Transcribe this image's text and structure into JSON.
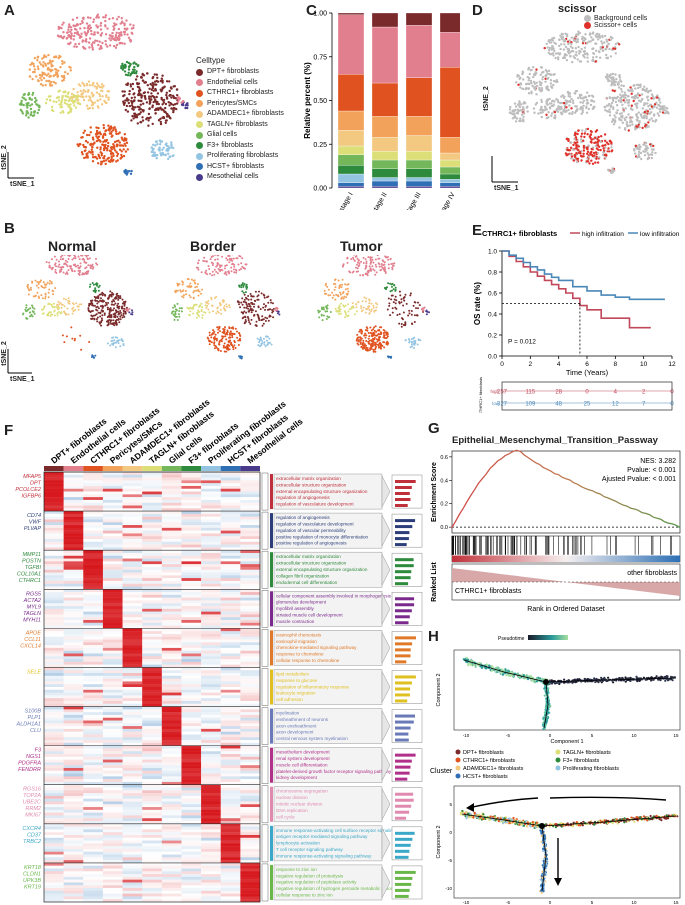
{
  "panels": {
    "A": "A",
    "B": "B",
    "C": "C",
    "D": "D",
    "E": "E",
    "F": "F",
    "G": "G",
    "H": "H"
  },
  "tsne": {
    "x": "tSNE_1",
    "y": "tSNE_2"
  },
  "celltypes": {
    "title": "Celltype",
    "items": [
      {
        "name": "DPT+ fibroblasts",
        "color": "#7a2a2a"
      },
      {
        "name": "Endothelial cells",
        "color": "#e27f8f"
      },
      {
        "name": "CTHRC1+ fibroblasts",
        "color": "#e0521f"
      },
      {
        "name": "Pericytes/SMCs",
        "color": "#f2a25a"
      },
      {
        "name": "ADAMDEC1+ fibroblasts",
        "color": "#f3c982"
      },
      {
        "name": "TAGLN+ fibroblasts",
        "color": "#dcdf78"
      },
      {
        "name": "Glial cells",
        "color": "#74b75a"
      },
      {
        "name": "F3+ fibroblasts",
        "color": "#2e8a3c"
      },
      {
        "name": "Proliferating fibroblasts",
        "color": "#93c4e2"
      },
      {
        "name": "HCST+ fibroblasts",
        "color": "#2f6fb5"
      },
      {
        "name": "Mesothelial cells",
        "color": "#4a3a8c"
      }
    ]
  },
  "panelB": {
    "titles": [
      "Normal",
      "Border",
      "Tumor"
    ]
  },
  "chart_data": [
    {
      "type": "bar",
      "title": "",
      "ylabel": "Relative percent (%)",
      "xlabel": "",
      "ylim": [
        0,
        1
      ],
      "yticks": [
        "0.00",
        "0.25",
        "0.50",
        "0.75",
        "1.00"
      ],
      "categories": [
        "stage I",
        "stage II",
        "stage III",
        "stage IV"
      ],
      "series": [
        {
          "name": "Mesothelial cells",
          "color": "#4a3a8c",
          "values": [
            0.01,
            0.01,
            0.01,
            0.01
          ]
        },
        {
          "name": "HCST+ fibroblasts",
          "color": "#2f6fb5",
          "values": [
            0.02,
            0.03,
            0.03,
            0.02
          ]
        },
        {
          "name": "Proliferating fibroblasts",
          "color": "#93c4e2",
          "values": [
            0.05,
            0.02,
            0.02,
            0.02
          ]
        },
        {
          "name": "F3+ fibroblasts",
          "color": "#2e8a3c",
          "values": [
            0.05,
            0.05,
            0.05,
            0.03
          ]
        },
        {
          "name": "Glial cells",
          "color": "#74b75a",
          "values": [
            0.06,
            0.05,
            0.05,
            0.04
          ]
        },
        {
          "name": "TAGLN+ fibroblasts",
          "color": "#dcdf78",
          "values": [
            0.05,
            0.05,
            0.05,
            0.04
          ]
        },
        {
          "name": "ADAMDEC1+ fibroblasts",
          "color": "#f3c982",
          "values": [
            0.09,
            0.08,
            0.09,
            0.04
          ]
        },
        {
          "name": "Pericytes/SMCs",
          "color": "#f2a25a",
          "values": [
            0.11,
            0.12,
            0.11,
            0.09
          ]
        },
        {
          "name": "CTHRC1+ fibroblasts",
          "color": "#e0521f",
          "values": [
            0.21,
            0.19,
            0.22,
            0.4
          ]
        },
        {
          "name": "Endothelial cells",
          "color": "#e27f8f",
          "values": [
            0.34,
            0.32,
            0.3,
            0.2
          ]
        },
        {
          "name": "DPT+ fibroblasts",
          "color": "#7a2a2a",
          "values": [
            0.01,
            0.08,
            0.07,
            0.11
          ]
        }
      ]
    },
    {
      "type": "line",
      "title": "CTHRC1+ fibroblasts",
      "xlabel": "Time (Years)",
      "ylabel": "OS rate (%)",
      "xlim": [
        0,
        12
      ],
      "ylim": [
        0,
        1
      ],
      "xticks": [
        "0",
        "2",
        "4",
        "6",
        "8",
        "10",
        "12"
      ],
      "yticks": [
        "0.0",
        "0.2",
        "0.4",
        "0.6",
        "0.8",
        "1.0"
      ],
      "series": [
        {
          "name": "high infiltration",
          "color": "#c0485a",
          "x": [
            0,
            0.5,
            1,
            1.5,
            2,
            2.5,
            3,
            3.5,
            4,
            4.5,
            5,
            5.5,
            6,
            7,
            8,
            9,
            10.5
          ],
          "y": [
            1.0,
            0.95,
            0.9,
            0.85,
            0.8,
            0.76,
            0.72,
            0.68,
            0.64,
            0.6,
            0.55,
            0.48,
            0.44,
            0.36,
            0.36,
            0.27,
            0.27
          ]
        },
        {
          "name": "low infiltration",
          "color": "#4a88b8",
          "x": [
            0,
            0.5,
            1,
            1.5,
            2,
            2.5,
            3,
            3.5,
            4,
            5,
            6,
            7,
            8,
            9,
            10,
            11.5
          ],
          "y": [
            1.0,
            0.96,
            0.93,
            0.89,
            0.85,
            0.82,
            0.78,
            0.75,
            0.72,
            0.66,
            0.62,
            0.58,
            0.56,
            0.54,
            0.54,
            0.54
          ]
        }
      ],
      "pvalue": "P = 0.012",
      "median_marker_x": 5.5
    }
  ],
  "panelD": {
    "title": "scissor",
    "legend": [
      {
        "name": "Background cells",
        "color": "#bdbdbd"
      },
      {
        "name": "Scissor+ cells",
        "color": "#e0302a"
      }
    ]
  },
  "risk_table": {
    "label": "CTHRC1+ fibroblasts",
    "rows": [
      {
        "name": "high",
        "color": "#c0485a",
        "counts": [
          "257",
          "115",
          "28",
          "0",
          "4",
          "2",
          "0"
        ]
      },
      {
        "name": "low",
        "color": "#4a88b8",
        "counts": [
          "327",
          "109",
          "48",
          "25",
          "12",
          "7",
          "0"
        ]
      }
    ],
    "xlabel": "Time (Years)"
  },
  "panelF": {
    "columns": [
      "DPT+ fibroblasts",
      "Endothelial cells",
      "CTHRC1+ fibroblasts",
      "Pericytes/SMCs",
      "ADAMDEC1+ fibroblasts",
      "TAGLN+ fibroblasts",
      "Glial cells",
      "F3+ fibroblasts",
      "Proliferating fibroblasts",
      "HCST+ fibroblasts",
      "Mesothelial cells"
    ],
    "groups": [
      {
        "genes": [
          "MFAP5",
          "DPT",
          "PCOLCE2",
          "IGFBP6"
        ],
        "color": "#c0303a",
        "terms": [
          "extracellular matrix organization",
          "extracellular structure organization",
          "external encapsulating structure organization",
          "regulation of angiogenesis",
          "regulation of vasculature development"
        ]
      },
      {
        "genes": [
          "CD74",
          "VWF",
          "PLVAP"
        ],
        "color": "#2c3e7a",
        "terms": [
          "regulation of angiogenesis",
          "regulation of vasculature development",
          "regulation of vascular permeability",
          "positive regulation of monocyte differentiation",
          "positive regulation of angiogenesis"
        ]
      },
      {
        "genes": [
          "MMP11",
          "POSTN",
          "TGFBI",
          "COL10A1",
          "CTHRC1"
        ],
        "color": "#2e8a3c",
        "terms": [
          "extracellular matrix organization",
          "extracellular structure organization",
          "external encapsulating structure organization",
          "collagen fibril organization",
          "endodermal cell differentiation"
        ]
      },
      {
        "genes": [
          "RGS5",
          "ACTA2",
          "MYL9",
          "TAGLN",
          "MYH11"
        ],
        "color": "#7a2a8c",
        "terms": [
          "cellular component assembly involved in morphogenesis",
          "glomerulus development",
          "myofibril assembly",
          "striated muscle cell development",
          "muscle contraction"
        ]
      },
      {
        "genes": [
          "APOE",
          "CCL11",
          "CXCL14"
        ],
        "color": "#e07a2a",
        "terms": [
          "eosinophil chemotaxis",
          "eosinophil migration",
          "chemokine-mediated signaling pathway",
          "response to chemokine",
          "cellular response to chemokine"
        ]
      },
      {
        "genes": [
          "SELE"
        ],
        "color": "#e0c020",
        "terms": [
          "lipid metabolism",
          "response to glucose",
          "regulation of inflammatory response",
          "leukocyte migration",
          "cell adhesion"
        ]
      },
      {
        "genes": [
          "S100B",
          "PLP1",
          "ALDH1A1",
          "CLU"
        ],
        "color": "#6a7ab8",
        "terms": [
          "myelination",
          "ensheathment of neurons",
          "axon ensheathment",
          "axon development",
          "central nervous system myelination"
        ]
      },
      {
        "genes": [
          "F3",
          "NGS1",
          "PDGFRA",
          "FENDRR"
        ],
        "color": "#b0308a",
        "terms": [
          "mesothelium development",
          "renal system development",
          "muscle cell differentiation",
          "platelet-derived growth factor receptor signaling pathway",
          "kidney development"
        ]
      },
      {
        "genes": [
          "RGS16",
          "TOP2A",
          "UBE2C",
          "RRM2",
          "MKI67"
        ],
        "color": "#e08ab0",
        "terms": [
          "chromosome segregation",
          "nuclear division",
          "mitotic nuclear division",
          "DNA replication",
          "cell cycle"
        ]
      },
      {
        "genes": [
          "CXCR4",
          "CD37",
          "TRBC2"
        ],
        "color": "#3aa8c8",
        "terms": [
          "immune response-activating cell surface receptor signaling pathway",
          "antigen receptor-mediated signaling pathway",
          "lymphocyte activation",
          "T cell receptor signaling pathway",
          "immune response-activating signaling pathway"
        ]
      },
      {
        "genes": [
          "KRT18",
          "CLDN1",
          "UPK3B",
          "KRT19"
        ],
        "color": "#6ab84a",
        "terms": [
          "response to zinc ion",
          "negative regulation of proteolysis",
          "negative regulation of peptidase activity",
          "negative regulation of hydrogen peroxide metabolic process",
          "cellular response to zinc ion"
        ]
      }
    ]
  },
  "panelG": {
    "title": "Epithelial_Mesenchymal_Transition_Passway",
    "nes": "NES: 3.282",
    "pvalue": "Pvalue: < 0.001",
    "adj": "Ajusted Pvalue: < 0.001",
    "ylabel_top": "Enrichment Score",
    "ylabel_bottom": "Ranked List",
    "top_label": "other fibroblasts",
    "bottom_label": "CTHRC1+ fibroblasts",
    "xlabel": "Rank in Ordered Dataset",
    "yticks": [
      "0.6",
      "0.4",
      "0.2",
      "0.0"
    ]
  },
  "panelH": {
    "xlabel": "Component 1",
    "ylabel": "Component 2",
    "pseudotime_label": "Pseudotime",
    "legend_title": "Cluster",
    "legend": [
      {
        "name": "DPT+ fibroblasts",
        "color": "#7a2a2a"
      },
      {
        "name": "TAGLN+ fibroblasts",
        "color": "#dcdf78"
      },
      {
        "name": "CTHRC1+ fibroblasts",
        "color": "#e0521f"
      },
      {
        "name": "F3+ fibroblasts",
        "color": "#2e8a3c"
      },
      {
        "name": "ADAMDEC1+ fibroblasts",
        "color": "#f3c982"
      },
      {
        "name": "Proliferating fibroblasts",
        "color": "#93c4e2"
      },
      {
        "name": "HCST+ fibroblasts",
        "color": "#2f6fb5"
      }
    ],
    "xticks": [
      "-10",
      "-5",
      "0",
      "5",
      "10",
      "15"
    ],
    "yticks": [
      "5",
      "0",
      "-5",
      "-10"
    ]
  }
}
